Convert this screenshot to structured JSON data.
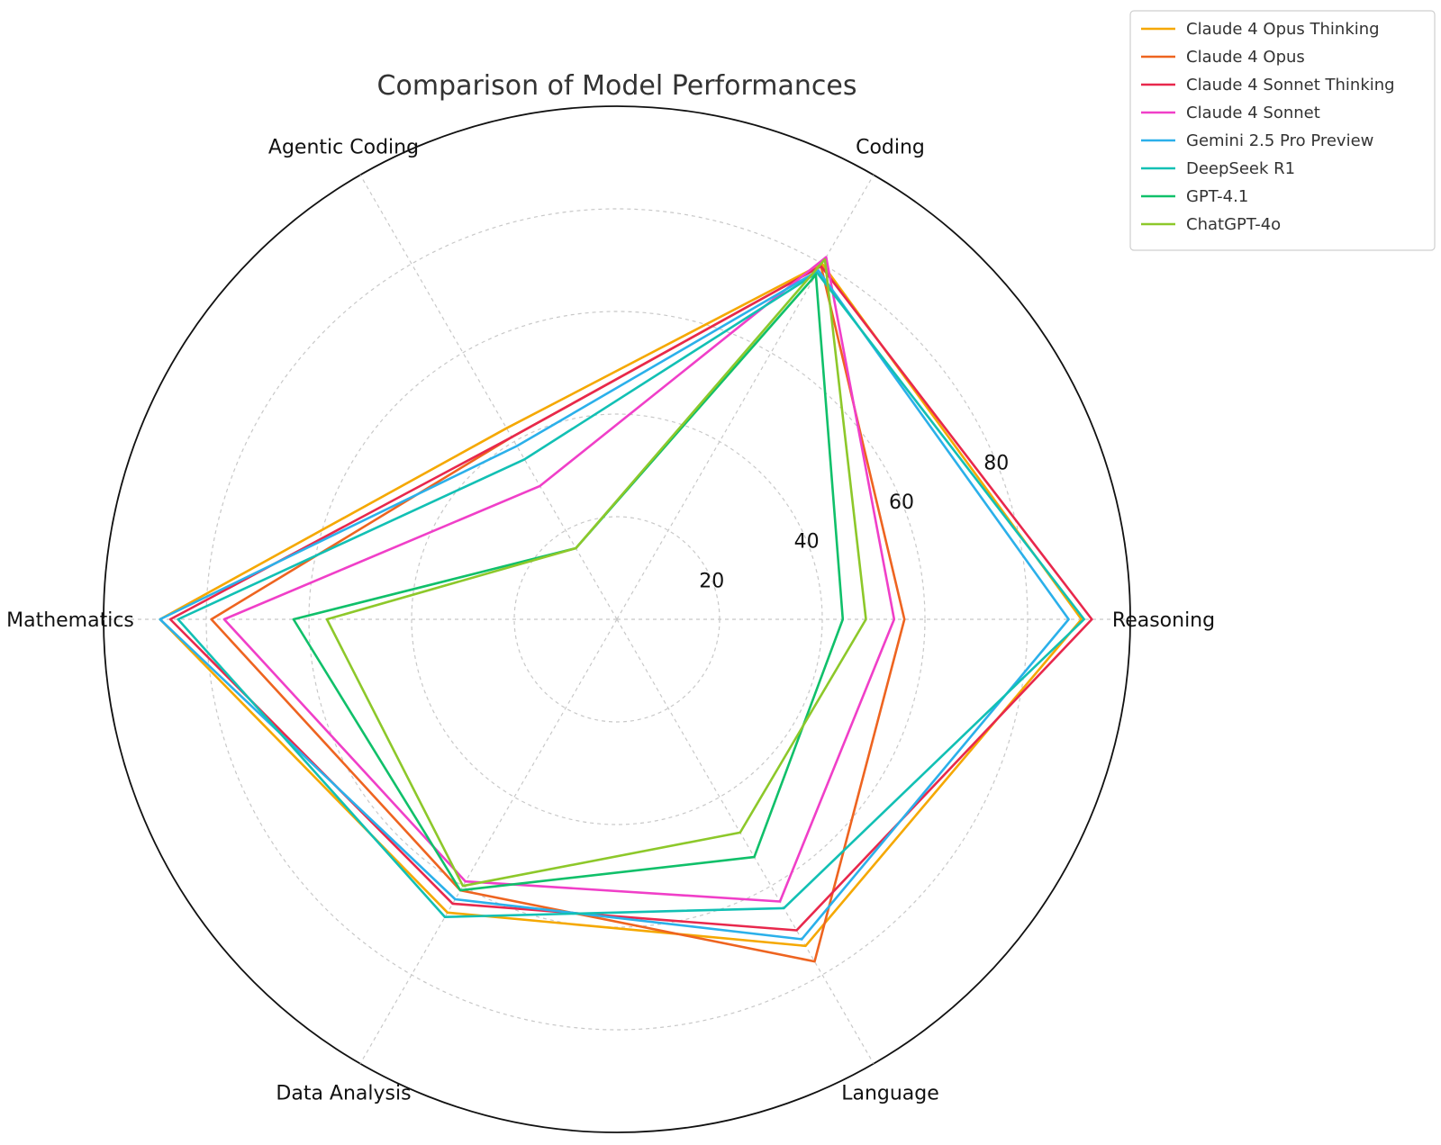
{
  "chart_data": {
    "type": "radar",
    "title": "Comparison of Model Performances",
    "axes": [
      "Reasoning",
      "Coding",
      "Agentic Coding",
      "Mathematics",
      "Data Analysis",
      "Language"
    ],
    "rlim": [
      0,
      100
    ],
    "rticks": [
      20,
      40,
      60,
      80
    ],
    "rtick_labels": [
      "20",
      "40",
      "60",
      "80"
    ],
    "legend_position": "top-right",
    "series": [
      {
        "name": "Claude 4 Opus Thinking",
        "color": "#F5A800",
        "values": [
          90.5,
          80,
          43,
          89,
          66,
          73.5
        ]
      },
      {
        "name": "Claude 4 Opus",
        "color": "#EE6420",
        "values": [
          56,
          79.5,
          41,
          79,
          61,
          77
        ]
      },
      {
        "name": "Claude 4 Sonnet Thinking",
        "color": "#E8284C",
        "values": [
          92.5,
          79.5,
          41,
          87,
          64,
          70
        ]
      },
      {
        "name": "Claude 4 Sonnet",
        "color": "#F03FC8",
        "values": [
          54,
          81.5,
          30,
          76.5,
          59,
          63.5
        ]
      },
      {
        "name": "Gemini 2.5 Pro Preview",
        "color": "#2BB0EA",
        "values": [
          88,
          78.5,
          39,
          89,
          63,
          72
        ]
      },
      {
        "name": "DeepSeek R1",
        "color": "#12C0B4",
        "values": [
          91,
          78,
          36,
          85.5,
          67,
          65
        ]
      },
      {
        "name": "GPT-4.1",
        "color": "#10C06A",
        "values": [
          44,
          77.5,
          16,
          63,
          61,
          53.5
        ]
      },
      {
        "name": "ChatGPT-4o",
        "color": "#8DC82A",
        "values": [
          48.5,
          81,
          16,
          56.5,
          60,
          48
        ]
      }
    ]
  }
}
